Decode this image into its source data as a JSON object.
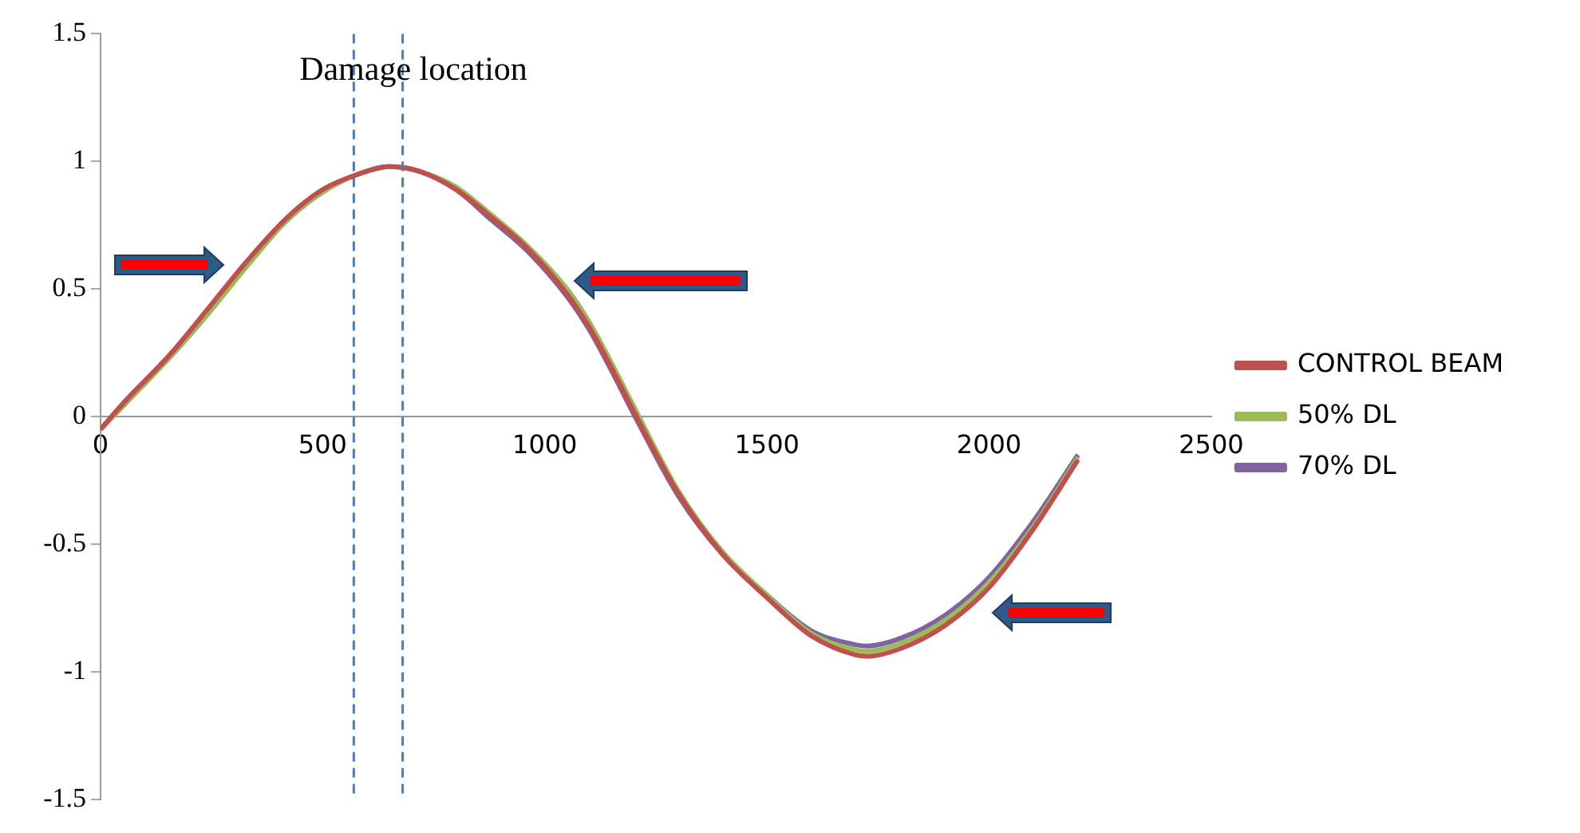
{
  "chart_data": {
    "type": "line",
    "annotations": [
      "Damage location"
    ],
    "xlim": [
      0,
      2500
    ],
    "xticks": [
      0,
      500,
      1000,
      1500,
      2000,
      2500
    ],
    "ylim": [
      -1.5,
      1.5
    ],
    "yticks": [
      -1.5,
      -1,
      -0.5,
      0,
      0.5,
      1,
      1.5
    ],
    "grid": false,
    "legend": "right",
    "marker": "none",
    "line_style": "solid",
    "ref_lines": [
      {
        "axis": "x",
        "value": 570,
        "color": "#4a7ebb",
        "line_style": "dashed"
      },
      {
        "axis": "x",
        "value": 680,
        "color": "#4a7ebb",
        "line_style": "dashed"
      }
    ],
    "series": [
      {
        "name": "CONTROL BEAM",
        "color": "#c0504d",
        "x": [
          0,
          50,
          160,
          250,
          330,
          420,
          500,
          580,
          650,
          720,
          800,
          880,
          960,
          1050,
          1100,
          1150,
          1200,
          1300,
          1400,
          1500,
          1600,
          1700,
          1725,
          1800,
          1900,
          2000,
          2100,
          2200
        ],
        "values": [
          -0.05,
          0.05,
          0.25,
          0.44,
          0.61,
          0.78,
          0.89,
          0.95,
          0.98,
          0.96,
          0.89,
          0.78,
          0.66,
          0.48,
          0.35,
          0.19,
          0.02,
          -0.3,
          -0.54,
          -0.71,
          -0.86,
          -0.935,
          -0.94,
          -0.91,
          -0.82,
          -0.67,
          -0.44,
          -0.17
        ]
      },
      {
        "name": "50% DL",
        "color": "#9bbb59",
        "x": [
          0,
          50,
          160,
          250,
          330,
          420,
          500,
          580,
          650,
          720,
          800,
          880,
          960,
          1050,
          1100,
          1150,
          1200,
          1300,
          1400,
          1500,
          1600,
          1700,
          1725,
          1800,
          1900,
          2000,
          2100,
          2200
        ],
        "values": [
          -0.05,
          0.04,
          0.24,
          0.42,
          0.59,
          0.77,
          0.88,
          0.95,
          0.98,
          0.96,
          0.9,
          0.79,
          0.67,
          0.5,
          0.37,
          0.21,
          0.04,
          -0.29,
          -0.53,
          -0.7,
          -0.85,
          -0.915,
          -0.92,
          -0.89,
          -0.8,
          -0.65,
          -0.43,
          -0.16
        ]
      },
      {
        "name": "70% DL",
        "color": "#8064a2",
        "x": [
          0,
          50,
          160,
          250,
          330,
          420,
          500,
          580,
          650,
          720,
          800,
          880,
          960,
          1050,
          1100,
          1150,
          1200,
          1300,
          1400,
          1500,
          1600,
          1700,
          1725,
          1800,
          1900,
          2000,
          2100,
          2200
        ],
        "values": [
          -0.05,
          0.04,
          0.24,
          0.42,
          0.6,
          0.77,
          0.88,
          0.95,
          0.98,
          0.96,
          0.89,
          0.77,
          0.65,
          0.47,
          0.34,
          0.18,
          0.01,
          -0.31,
          -0.54,
          -0.7,
          -0.84,
          -0.895,
          -0.9,
          -0.87,
          -0.78,
          -0.63,
          -0.41,
          -0.15
        ]
      }
    ]
  }
}
